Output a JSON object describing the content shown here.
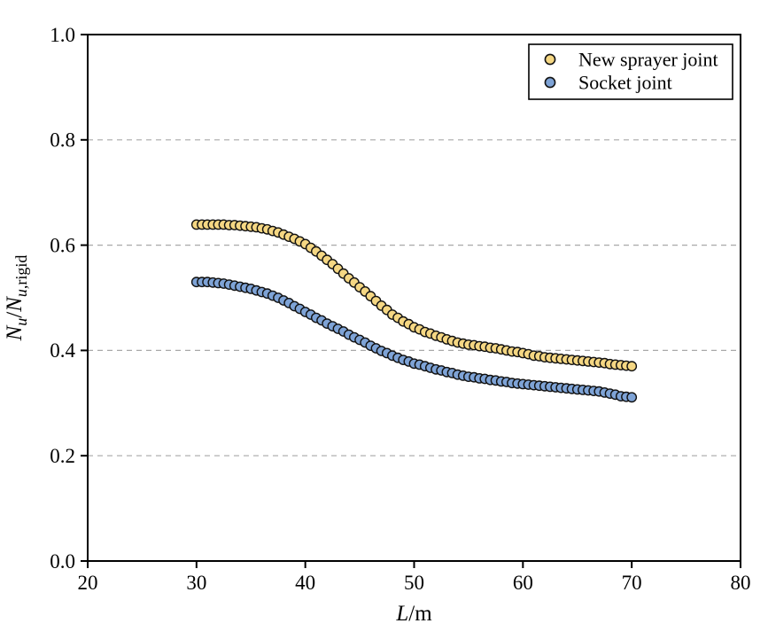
{
  "chart_data": {
    "type": "scatter",
    "title": "",
    "xlabel_parts": [
      {
        "text": "L",
        "italic": true,
        "sub": false
      },
      {
        "text": "/m",
        "italic": false,
        "sub": false
      }
    ],
    "ylabel_parts": [
      {
        "text": "N",
        "italic": true,
        "sub": false
      },
      {
        "text": "u",
        "italic": true,
        "sub": true
      },
      {
        "text": "/",
        "italic": false,
        "sub": false
      },
      {
        "text": "N",
        "italic": true,
        "sub": false
      },
      {
        "text": "u,",
        "italic": true,
        "sub": true
      },
      {
        "text": "rigid",
        "italic": false,
        "sub": true
      }
    ],
    "xlim": [
      20,
      80
    ],
    "ylim": [
      0.0,
      1.0
    ],
    "x_ticks": [
      {
        "v": 20,
        "label": "20"
      },
      {
        "v": 30,
        "label": "30"
      },
      {
        "v": 40,
        "label": "40"
      },
      {
        "v": 50,
        "label": "50"
      },
      {
        "v": 60,
        "label": "60"
      },
      {
        "v": 70,
        "label": "70"
      },
      {
        "v": 80,
        "label": "80"
      }
    ],
    "y_ticks": [
      {
        "v": 0.0,
        "label": "0.0"
      },
      {
        "v": 0.2,
        "label": "0.2"
      },
      {
        "v": 0.4,
        "label": "0.4"
      },
      {
        "v": 0.6,
        "label": "0.6"
      },
      {
        "v": 0.8,
        "label": "0.8"
      },
      {
        "v": 1.0,
        "label": "1.0"
      }
    ],
    "grid": {
      "horizontal_at": [
        0.2,
        0.4,
        0.6,
        0.8
      ],
      "style": "dashed",
      "color": "#a8a8a8"
    },
    "legend": {
      "position": "top-right",
      "entries": [
        "New sprayer joint",
        "Socket joint"
      ]
    },
    "x": [
      30,
      30.5,
      31,
      31.5,
      32,
      32.5,
      33,
      33.5,
      34,
      34.5,
      35,
      35.5,
      36,
      36.5,
      37,
      37.5,
      38,
      38.5,
      39,
      39.5,
      40,
      40.5,
      41,
      41.5,
      42,
      42.5,
      43,
      43.5,
      44,
      44.5,
      45,
      45.5,
      46,
      46.5,
      47,
      47.5,
      48,
      48.5,
      49,
      49.5,
      50,
      50.5,
      51,
      51.5,
      52,
      52.5,
      53,
      53.5,
      54,
      54.5,
      55,
      55.5,
      56,
      56.5,
      57,
      57.5,
      58,
      58.5,
      59,
      59.5,
      60,
      60.5,
      61,
      61.5,
      62,
      62.5,
      63,
      63.5,
      64,
      64.5,
      65,
      65.5,
      66,
      66.5,
      67,
      67.5,
      68,
      68.5,
      69,
      69.5,
      70
    ],
    "series": [
      {
        "name": "New sprayer joint",
        "marker": "circle",
        "fill": "#F5D783",
        "edge": "#111111",
        "values": [
          0.639,
          0.639,
          0.639,
          0.639,
          0.639,
          0.639,
          0.638,
          0.638,
          0.637,
          0.636,
          0.635,
          0.634,
          0.632,
          0.63,
          0.627,
          0.624,
          0.62,
          0.616,
          0.612,
          0.607,
          0.602,
          0.595,
          0.588,
          0.58,
          0.572,
          0.564,
          0.555,
          0.546,
          0.537,
          0.529,
          0.52,
          0.512,
          0.503,
          0.494,
          0.485,
          0.477,
          0.468,
          0.462,
          0.455,
          0.45,
          0.444,
          0.44,
          0.435,
          0.432,
          0.428,
          0.425,
          0.421,
          0.418,
          0.415,
          0.413,
          0.411,
          0.41,
          0.408,
          0.407,
          0.405,
          0.404,
          0.402,
          0.4,
          0.398,
          0.397,
          0.395,
          0.393,
          0.39,
          0.389,
          0.387,
          0.386,
          0.385,
          0.384,
          0.383,
          0.382,
          0.381,
          0.38,
          0.379,
          0.378,
          0.377,
          0.376,
          0.374,
          0.373,
          0.372,
          0.371,
          0.37
        ]
      },
      {
        "name": "Socket joint",
        "marker": "circle",
        "fill": "#7EA3D6",
        "edge": "#111111",
        "values": [
          0.53,
          0.53,
          0.53,
          0.529,
          0.528,
          0.527,
          0.525,
          0.523,
          0.521,
          0.519,
          0.517,
          0.514,
          0.511,
          0.508,
          0.504,
          0.5,
          0.495,
          0.49,
          0.484,
          0.479,
          0.473,
          0.468,
          0.462,
          0.457,
          0.451,
          0.446,
          0.441,
          0.436,
          0.43,
          0.425,
          0.42,
          0.415,
          0.409,
          0.404,
          0.399,
          0.395,
          0.39,
          0.386,
          0.382,
          0.379,
          0.375,
          0.373,
          0.37,
          0.367,
          0.364,
          0.362,
          0.359,
          0.357,
          0.354,
          0.352,
          0.35,
          0.349,
          0.347,
          0.346,
          0.344,
          0.343,
          0.341,
          0.34,
          0.338,
          0.337,
          0.336,
          0.335,
          0.334,
          0.333,
          0.332,
          0.331,
          0.33,
          0.329,
          0.328,
          0.327,
          0.326,
          0.325,
          0.324,
          0.323,
          0.322,
          0.32,
          0.318,
          0.316,
          0.313,
          0.312,
          0.311
        ]
      }
    ]
  },
  "colors": {
    "axis": "#000000",
    "background": "#ffffff",
    "gridline": "#a8a8a8",
    "series_yellow": "#F5D783",
    "series_blue": "#7EA3D6",
    "marker_edge": "#111111"
  }
}
